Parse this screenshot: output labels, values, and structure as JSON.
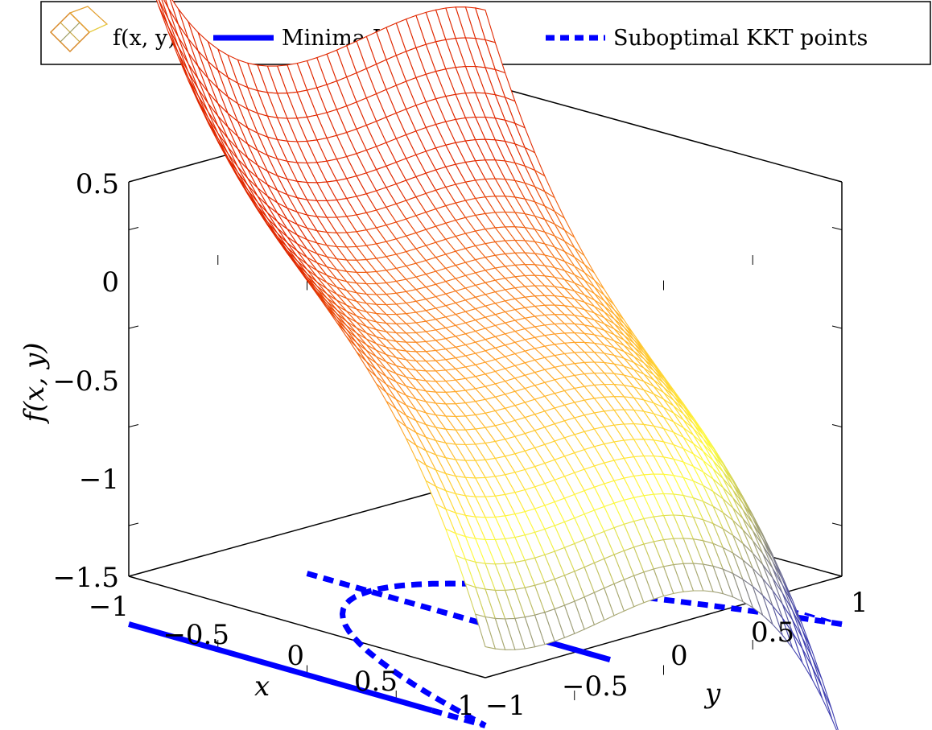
{
  "chart_data": {
    "type": "surface",
    "legend": [
      "f(x, y)",
      "Minima KKT points",
      "Suboptimal KKT points"
    ],
    "xlabel": "x",
    "ylabel": "y",
    "zlabel": "f(x, y)",
    "x_ticks": [
      "−1",
      "−0.5",
      "0",
      "0.5",
      "1"
    ],
    "y_ticks": [
      "−1",
      "−0.5",
      "0",
      "0.5",
      "1"
    ],
    "z_ticks": [
      "−1",
      "−0.5",
      "0",
      "0.5"
    ],
    "z_ticks_bottom": "−1.5",
    "xlim": [
      -1,
      1
    ],
    "ylim": [
      -1,
      1
    ],
    "zlim": [
      -1.5,
      0.5
    ],
    "series": [
      {
        "name": "f(x, y)",
        "style": "mesh",
        "colormap": [
          "#4040b0",
          "#ffff40",
          "#ff8000",
          "#e03000"
        ]
      },
      {
        "name": "Minima KKT points",
        "style": "solid",
        "color": "#0000ff"
      },
      {
        "name": "Suboptimal KKT points",
        "style": "dashed",
        "color": "#0000ff"
      }
    ]
  }
}
